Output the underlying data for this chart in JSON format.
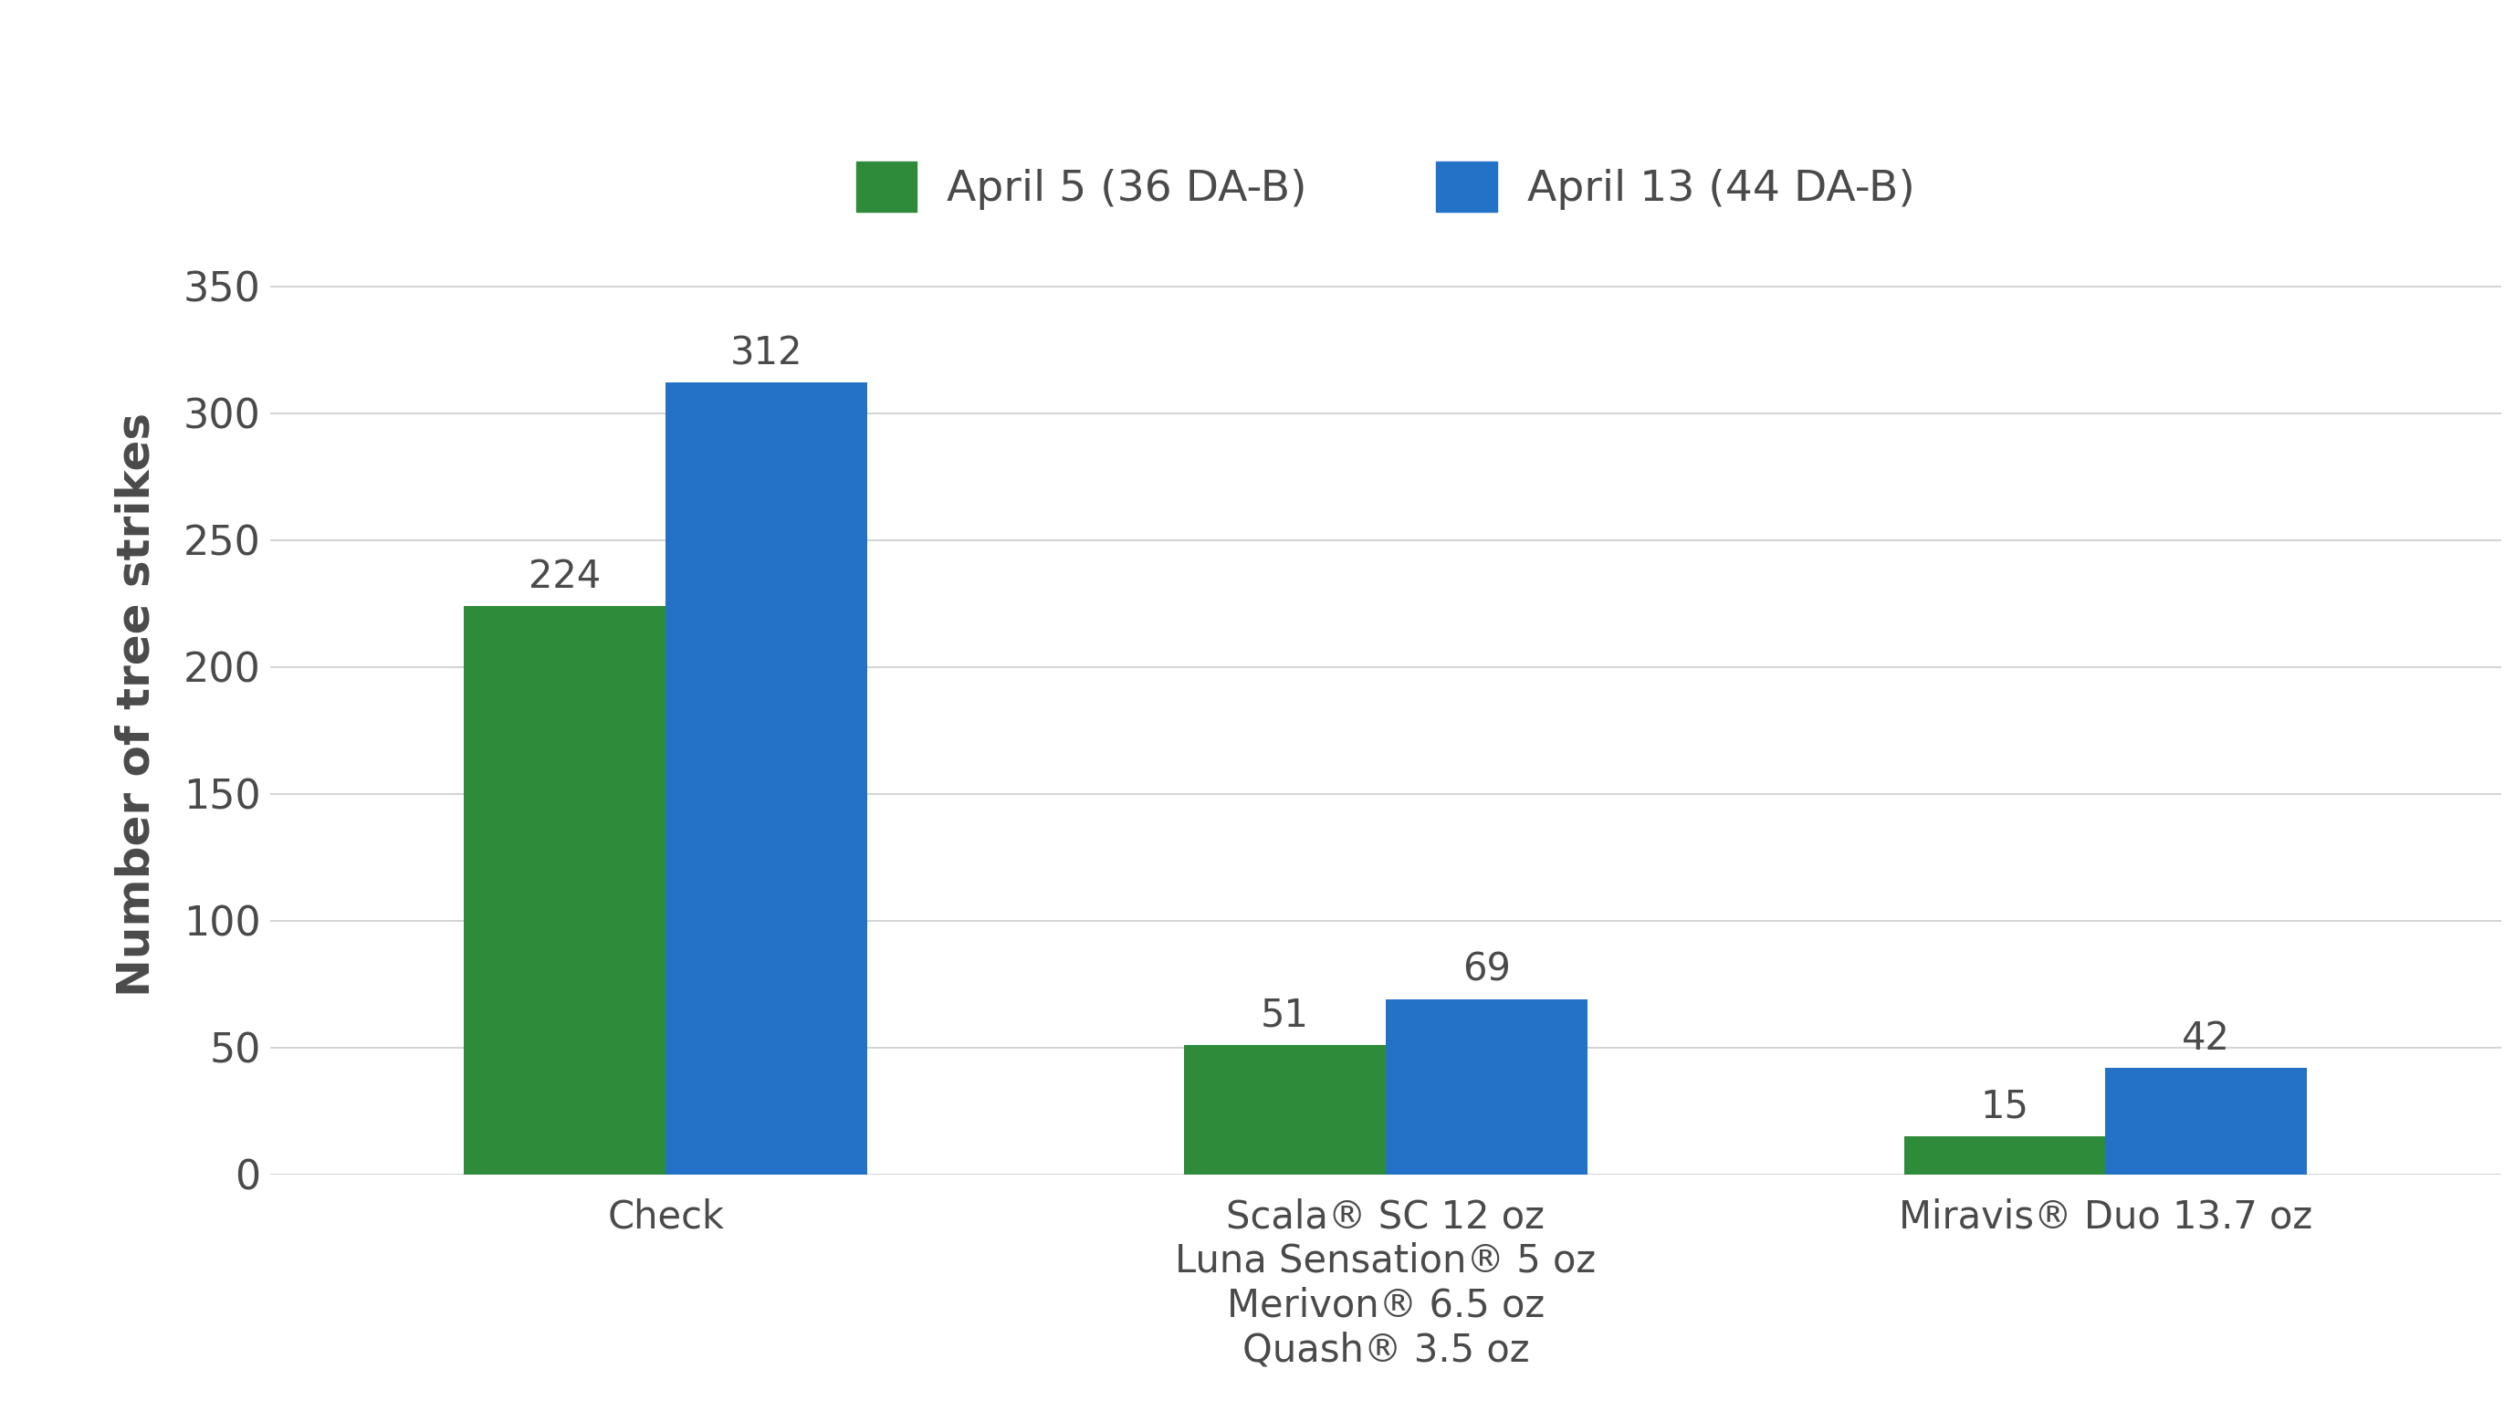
{
  "categories": [
    "Check",
    "Scala® SC 12 oz\nLuna Sensation® 5 oz\nMerivon® 6.5 oz\nQuash® 3.5 oz",
    "Miravis® Duo 13.7 oz"
  ],
  "series": [
    {
      "label": "April 5 (36 DA-B)",
      "color": "#2e8b3a",
      "values": [
        224,
        51,
        15
      ]
    },
    {
      "label": "April 13 (44 DA-B)",
      "color": "#2472c8",
      "values": [
        312,
        69,
        42
      ]
    }
  ],
  "ylabel": "Number of tree strikes",
  "ylim": [
    0,
    370
  ],
  "yticks": [
    0,
    50,
    100,
    150,
    200,
    250,
    300,
    350
  ],
  "background_color": "#ffffff",
  "grid_color": "#cccccc",
  "text_color": "#4a4a4a",
  "bar_width": 0.28,
  "group_centers": [
    0.0,
    1.0,
    2.0
  ],
  "ylabel_fontsize": 36,
  "tick_fontsize": 32,
  "legend_fontsize": 34,
  "value_label_fontsize": 30,
  "xtick_fontsize": 30
}
